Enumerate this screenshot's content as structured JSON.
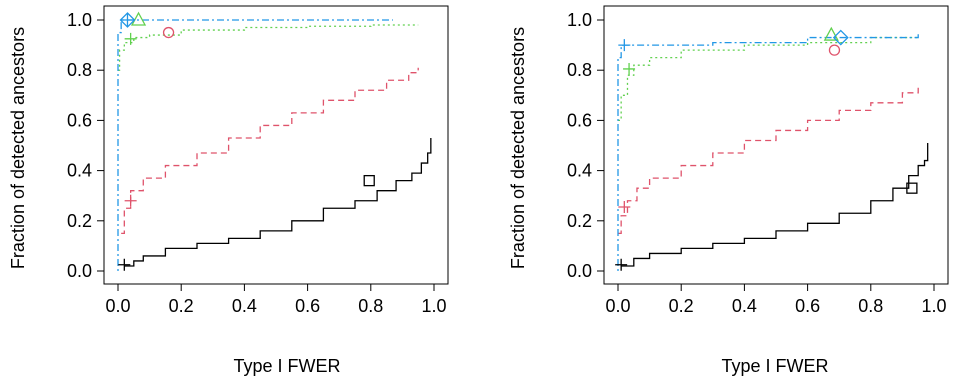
{
  "chart_data": [
    {
      "type": "line",
      "xlabel": "Type I FWER",
      "ylabel": "Fraction of detected ancestors",
      "xlim": [
        0,
        1
      ],
      "ylim": [
        0,
        1
      ],
      "xticks": [
        "0.0",
        "0.2",
        "0.4",
        "0.6",
        "0.8",
        "1.0"
      ],
      "yticks": [
        "0.0",
        "0.2",
        "0.4",
        "0.6",
        "0.8",
        "1.0"
      ],
      "grid": false,
      "legend": "none",
      "series": [
        {
          "color": "#000000",
          "dash": "solid",
          "x": [
            0.02,
            0.05,
            0.08,
            0.15,
            0.25,
            0.35,
            0.45,
            0.55,
            0.65,
            0.75,
            0.82,
            0.88,
            0.93,
            0.96,
            0.98,
            0.99
          ],
          "y": [
            0.02,
            0.04,
            0.06,
            0.09,
            0.11,
            0.13,
            0.16,
            0.2,
            0.25,
            0.28,
            0.32,
            0.36,
            0.39,
            0.43,
            0.47,
            0.53
          ]
        },
        {
          "color": "#DF536B",
          "dash": "dashed",
          "x": [
            0.01,
            0.02,
            0.04,
            0.08,
            0.15,
            0.25,
            0.35,
            0.45,
            0.55,
            0.65,
            0.75,
            0.85,
            0.92,
            0.95
          ],
          "y": [
            0.15,
            0.25,
            0.32,
            0.37,
            0.42,
            0.47,
            0.53,
            0.58,
            0.63,
            0.68,
            0.72,
            0.76,
            0.79,
            0.81
          ]
        },
        {
          "color": "#61D04F",
          "dash": "dotted",
          "x": [
            0.0,
            0.005,
            0.02,
            0.05,
            0.1,
            0.2,
            0.4,
            0.6,
            0.8,
            0.95
          ],
          "y": [
            0.8,
            0.88,
            0.91,
            0.93,
            0.94,
            0.96,
            0.97,
            0.975,
            0.98,
            0.98
          ]
        },
        {
          "color": "#2297E6",
          "dash": "dotdash",
          "x": [
            0.0,
            0.0,
            0.01,
            0.87
          ],
          "y": [
            0.0,
            0.95,
            1.0,
            1.0
          ]
        }
      ],
      "markers": [
        {
          "shape": "plus",
          "color": "#000000",
          "x": 0.02,
          "y": 0.025
        },
        {
          "shape": "square",
          "color": "#000000",
          "x": 0.795,
          "y": 0.36
        },
        {
          "shape": "plus",
          "color": "#DF536B",
          "x": 0.04,
          "y": 0.28
        },
        {
          "shape": "circle",
          "color": "#DF536B",
          "x": 0.16,
          "y": 0.95
        },
        {
          "shape": "plus",
          "color": "#61D04F",
          "x": 0.04,
          "y": 0.925
        },
        {
          "shape": "triangle",
          "color": "#61D04F",
          "x": 0.065,
          "y": 1.0
        },
        {
          "shape": "plus",
          "color": "#2297E6",
          "x": 0.03,
          "y": 1.0
        },
        {
          "shape": "diamond",
          "color": "#2297E6",
          "x": 0.03,
          "y": 1.0
        }
      ]
    },
    {
      "type": "line",
      "xlabel": "Type I FWER",
      "ylabel": "Fraction of detected ancestors",
      "xlim": [
        0,
        1
      ],
      "ylim": [
        0,
        1
      ],
      "xticks": [
        "0.0",
        "0.2",
        "0.4",
        "0.6",
        "0.8",
        "1.0"
      ],
      "yticks": [
        "0.0",
        "0.2",
        "0.4",
        "0.6",
        "0.8",
        "1.0"
      ],
      "grid": false,
      "legend": "none",
      "series": [
        {
          "color": "#000000",
          "dash": "solid",
          "x": [
            0.01,
            0.05,
            0.1,
            0.2,
            0.3,
            0.4,
            0.5,
            0.6,
            0.7,
            0.8,
            0.87,
            0.92,
            0.95,
            0.97,
            0.98,
            0.98
          ],
          "y": [
            0.02,
            0.05,
            0.07,
            0.09,
            0.11,
            0.13,
            0.16,
            0.19,
            0.23,
            0.28,
            0.33,
            0.38,
            0.42,
            0.44,
            0.47,
            0.51
          ]
        },
        {
          "color": "#DF536B",
          "dash": "dashed",
          "x": [
            0.0,
            0.01,
            0.03,
            0.06,
            0.1,
            0.2,
            0.3,
            0.4,
            0.5,
            0.6,
            0.7,
            0.8,
            0.9,
            0.95
          ],
          "y": [
            0.15,
            0.22,
            0.28,
            0.33,
            0.37,
            0.42,
            0.47,
            0.52,
            0.56,
            0.6,
            0.64,
            0.67,
            0.71,
            0.73
          ]
        },
        {
          "color": "#61D04F",
          "dash": "dotted",
          "x": [
            0.0,
            0.01,
            0.03,
            0.05,
            0.1,
            0.2,
            0.4,
            0.6,
            0.8,
            0.95
          ],
          "y": [
            0.6,
            0.7,
            0.78,
            0.82,
            0.85,
            0.88,
            0.9,
            0.91,
            0.93,
            0.935
          ]
        },
        {
          "color": "#2297E6",
          "dash": "dotdash",
          "x": [
            0.0,
            0.0,
            0.01,
            0.3,
            0.6,
            0.95
          ],
          "y": [
            0.0,
            0.85,
            0.9,
            0.91,
            0.93,
            0.95
          ]
        }
      ],
      "markers": [
        {
          "shape": "plus",
          "color": "#000000",
          "x": 0.01,
          "y": 0.025
        },
        {
          "shape": "square",
          "color": "#000000",
          "x": 0.93,
          "y": 0.33
        },
        {
          "shape": "plus",
          "color": "#DF536B",
          "x": 0.02,
          "y": 0.255
        },
        {
          "shape": "circle",
          "color": "#DF536B",
          "x": 0.685,
          "y": 0.88
        },
        {
          "shape": "plus",
          "color": "#61D04F",
          "x": 0.035,
          "y": 0.805
        },
        {
          "shape": "triangle",
          "color": "#61D04F",
          "x": 0.675,
          "y": 0.94
        },
        {
          "shape": "plus",
          "color": "#2297E6",
          "x": 0.02,
          "y": 0.9
        },
        {
          "shape": "diamond",
          "color": "#2297E6",
          "x": 0.705,
          "y": 0.93
        }
      ]
    }
  ]
}
